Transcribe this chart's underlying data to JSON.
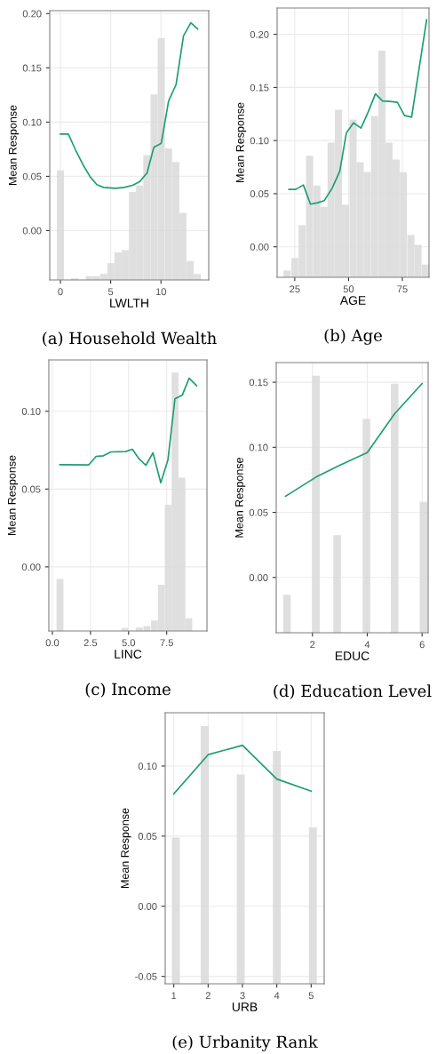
{
  "chart_data": [
    {
      "type": "line",
      "title": "(a) Household Wealth",
      "xlabel": "LWLTH",
      "ylabel": "Mean Response",
      "grid": true,
      "xlim": [
        -1.06,
        14.75
      ],
      "xticks": [
        0,
        5,
        10
      ],
      "ylim": [
        -0.0455,
        0.2027
      ],
      "yticks": [
        {
          "value": 0,
          "label": "0.00"
        },
        {
          "value": 0.05,
          "label": "0.05"
        },
        {
          "value": 0.1,
          "label": "0.10"
        },
        {
          "value": 0.15,
          "label": "0.15"
        },
        {
          "value": 0.2,
          "label": "0.20"
        }
      ],
      "series": [
        {
          "type": "bar",
          "color": "#d9d9d9",
          "x": [
            0,
            1.43,
            2.87,
            3.58,
            4.3,
            5.02,
            5.73,
            6.45,
            7.17,
            7.88,
            8.6,
            9.32,
            10.03,
            10.75,
            11.47,
            12.18,
            12.9,
            13.62
          ],
          "base": [
            -0.0455,
            -0.0455,
            -0.0455,
            -0.0455,
            -0.0455,
            -0.0455,
            -0.0455,
            -0.0455,
            -0.0455,
            -0.0455,
            -0.0455,
            -0.0455,
            -0.0455,
            -0.0455,
            -0.0455,
            -0.0455,
            -0.0455,
            -0.0455
          ],
          "values": [
            0.1009,
            0.0015,
            0.0035,
            0.0035,
            0.0055,
            0.0155,
            0.0255,
            0.0275,
            0.081,
            0.087,
            0.1151,
            0.171,
            0.2228,
            0.1213,
            0.1088,
            0.0619,
            0.0175,
            0.0055
          ]
        },
        {
          "color": "#1b9e77",
          "x": [
            0,
            0.79,
            1.5,
            2.24,
            2.97,
            3.62,
            4.29,
            5.47,
            6.35,
            7.18,
            7.91,
            8.62,
            9.29,
            10.03,
            10.76,
            11.5,
            12.24,
            12.97,
            13.65
          ],
          "values": [
            0.0889,
            0.0889,
            0.0745,
            0.0608,
            0.0494,
            0.0423,
            0.0398,
            0.039,
            0.0398,
            0.0417,
            0.0453,
            0.0532,
            0.0767,
            0.0805,
            0.1195,
            0.1345,
            0.1795,
            0.1915,
            0.1858
          ]
        }
      ]
    },
    {
      "type": "line",
      "title": "(b) Age",
      "xlabel": "AGE",
      "ylabel": "Mean Response",
      "grid": true,
      "xlim": [
        16.8,
        87.4
      ],
      "xticks": [
        25,
        50,
        75
      ],
      "ylim": [
        -0.0287,
        0.2248
      ],
      "yticks": [
        {
          "value": 0,
          "label": "0.00"
        },
        {
          "value": 0.05,
          "label": "0.05"
        },
        {
          "value": 0.1,
          "label": "0.10"
        },
        {
          "value": 0.15,
          "label": "0.15"
        },
        {
          "value": 0.2,
          "label": "0.20"
        }
      ],
      "series": [
        {
          "type": "bar",
          "color": "#d9d9d9",
          "x": [
            21.4,
            25,
            28.4,
            31.9,
            35.3,
            38.6,
            41.9,
            45.3,
            48.6,
            52.1,
            55.4,
            58.7,
            62.1,
            65.5,
            68.8,
            72.1,
            75.5,
            79.0,
            82.3,
            85.7
          ],
          "base": [
            -0.0287,
            -0.0287,
            -0.0287,
            -0.0287,
            -0.0287,
            -0.0287,
            -0.0287,
            -0.0287,
            -0.0287,
            -0.0287,
            -0.0287,
            -0.0287,
            -0.0287,
            -0.0287,
            -0.0287,
            -0.0287,
            -0.0287,
            -0.0287,
            -0.0287,
            -0.0287
          ],
          "values": [
            0.0064,
            0.0181,
            0.049,
            0.1145,
            0.0864,
            0.0663,
            0.1267,
            0.1577,
            0.0683,
            0.1485,
            0.1084,
            0.0992,
            0.1518,
            0.2134,
            0.1267,
            0.1109,
            0.0989,
            0.0398,
            0.0306,
            0.012
          ]
        },
        {
          "color": "#1b9e77",
          "x": [
            22.3,
            25.5,
            29.0,
            32.3,
            35.6,
            38.7,
            42.3,
            45.9,
            49.0,
            52.3,
            55.8,
            59.1,
            62.5,
            65.8,
            69.2,
            72.7,
            76.0,
            79.3,
            86.3
          ],
          "values": [
            0.054,
            0.054,
            0.0582,
            0.0401,
            0.0415,
            0.0435,
            0.0549,
            0.071,
            0.1073,
            0.1167,
            0.1117,
            0.1268,
            0.144,
            0.1373,
            0.1368,
            0.136,
            0.1237,
            0.122,
            0.2137
          ]
        }
      ]
    },
    {
      "type": "line",
      "title": "(c) Income",
      "xlabel": "LINC",
      "ylabel": "Mean Response",
      "grid": true,
      "xlim": [
        -0.23,
        10.14
      ],
      "xticks": [
        {
          "value": 0,
          "label": "0.0"
        },
        2.5,
        {
          "value": 5,
          "label": "5.0"
        },
        7.5
      ],
      "ylim": [
        -0.0412,
        0.133
      ],
      "yticks": [
        {
          "value": 0,
          "label": "0.00"
        },
        {
          "value": 0.05,
          "label": "0.05"
        },
        {
          "value": 0.1,
          "label": "0.10"
        }
      ],
      "series": [
        {
          "type": "bar",
          "color": "#d9d9d9",
          "x": [
            0.5,
            4.75,
            5.2,
            5.7,
            6.2,
            6.7,
            7.15,
            7.6,
            8.05,
            8.5,
            8.95
          ],
          "base": [
            -0.0412,
            -0.0412,
            null,
            -0.0412,
            -0.0412,
            -0.0412,
            -0.0412,
            -0.0412,
            -0.0412,
            -0.0412,
            -0.0412
          ],
          "values": [
            0.0334,
            0.0019,
            null,
            0.0022,
            0.0032,
            0.0067,
            0.0297,
            0.0811,
            0.166,
            0.0985,
            0.0082
          ]
        },
        {
          "color": "#1b9e77",
          "x": [
            0.5,
            2.38,
            2.87,
            3.35,
            3.84,
            4.8,
            5.25,
            5.68,
            6.14,
            6.6,
            7.11,
            7.58,
            8.04,
            8.53,
            8.97,
            9.46
          ],
          "values": [
            0.0657,
            0.0655,
            0.071,
            0.0714,
            0.0739,
            0.0741,
            0.0756,
            0.0695,
            0.0653,
            0.0733,
            0.054,
            0.0687,
            0.108,
            0.1105,
            0.1212,
            0.1164
          ]
        }
      ]
    },
    {
      "type": "line",
      "title": "(d) Education Level",
      "xlabel": "EDUC",
      "ylabel": "Mean Response",
      "grid": true,
      "xlim": [
        0.68,
        6.22
      ],
      "xticks": [
        2,
        4,
        6
      ],
      "ylim": [
        -0.0425,
        0.1651
      ],
      "yticks": [
        {
          "value": 0,
          "label": "0.00"
        },
        {
          "value": 0.05,
          "label": "0.05"
        },
        {
          "value": 0.1,
          "label": "0.10"
        },
        {
          "value": 0.15,
          "label": "0.15"
        }
      ],
      "series": [
        {
          "type": "bar",
          "color": "#d9d9d9",
          "x": [
            1.07,
            2.13,
            2.9,
            3.97,
            5.0,
            6.05
          ],
          "base": [
            -0.0425,
            -0.0425,
            -0.0425,
            -0.0425,
            -0.0425,
            -0.0425
          ],
          "values": [
            0.0292,
            0.1975,
            0.075,
            0.1644,
            0.1914,
            0.1005
          ]
        },
        {
          "color": "#1b9e77",
          "x": [
            1.02,
            2.13,
            3.0,
            4.0,
            5.0,
            6.0
          ],
          "values": [
            0.0624,
            0.0771,
            0.0862,
            0.0959,
            0.1258,
            0.149
          ]
        }
      ]
    },
    {
      "type": "line",
      "title": "(e) Urbanity Rank",
      "xlabel": "URB",
      "ylabel": "Mean Response",
      "grid": true,
      "xlim": [
        0.75,
        5.38
      ],
      "xticks": [
        1,
        2,
        3,
        4,
        5
      ],
      "ylim": [
        -0.0553,
        0.138
      ],
      "yticks": [
        {
          "value": -0.05,
          "label": "-0.05"
        },
        {
          "value": 0,
          "label": "0.00"
        },
        {
          "value": 0.05,
          "label": "0.05"
        },
        {
          "value": 0.1,
          "label": "0.10"
        }
      ],
      "series": [
        {
          "type": "bar",
          "color": "#d9d9d9",
          "x": [
            1.06,
            1.9,
            2.95,
            4.0,
            5.05
          ],
          "base": [
            -0.0553,
            -0.0553,
            -0.0553,
            -0.0553,
            -0.0553
          ],
          "values": [
            0.1042,
            0.1838,
            0.1492,
            0.1661,
            0.1116
          ]
        },
        {
          "color": "#1b9e77",
          "x": [
            1,
            2,
            3,
            4,
            5
          ],
          "values": [
            0.0802,
            0.1081,
            0.1148,
            0.0907,
            0.0821
          ]
        }
      ]
    }
  ]
}
